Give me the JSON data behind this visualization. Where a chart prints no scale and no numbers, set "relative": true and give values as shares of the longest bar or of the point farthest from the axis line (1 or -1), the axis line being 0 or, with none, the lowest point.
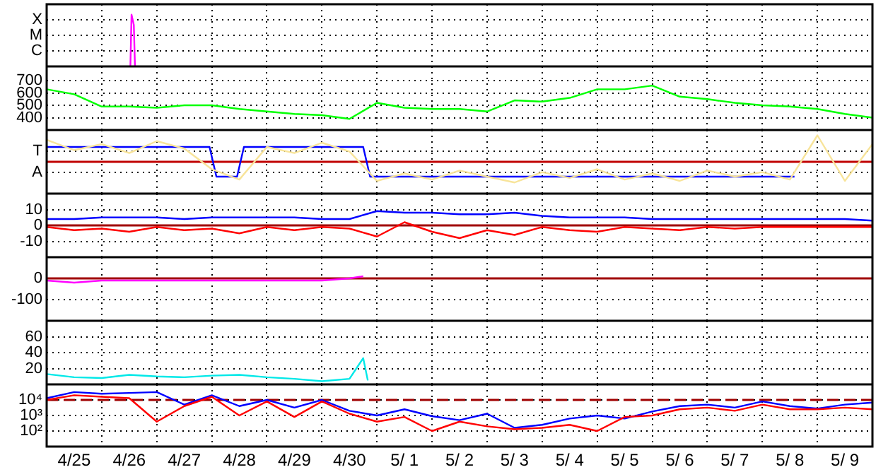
{
  "chart_data": [
    {
      "type": "line",
      "relative": true,
      "grid": true,
      "marker": "none",
      "tick_labels": false,
      "xlim": [
        "--04-25",
        "--05-10"
      ],
      "xticks": [
        {
          "value": "--04-26",
          "label": null
        },
        {
          "value": "--04-27",
          "label": null
        },
        {
          "value": "--04-28",
          "label": null
        },
        {
          "value": "--04-29",
          "label": null
        },
        {
          "value": "--04-30",
          "label": null
        },
        {
          "value": "--05-01",
          "label": null
        },
        {
          "value": "--05-02",
          "label": null
        },
        {
          "value": "--05-03",
          "label": null
        },
        {
          "value": "--05-04",
          "label": null
        },
        {
          "value": "--05-05",
          "label": null
        },
        {
          "value": "--05-06",
          "label": null
        },
        {
          "value": "--05-07",
          "label": null
        },
        {
          "value": "--05-08",
          "label": null
        },
        {
          "value": "--05-09",
          "label": null
        }
      ],
      "annotations": [
        "X",
        "M",
        "C"
      ],
      "series": [
        {
          "color": "#ff00ff",
          "x": [
            "--04-26T12:30",
            "--04-26T13:00",
            "--04-26T14:00",
            "--04-26T14:30"
          ],
          "values": [
            0,
            1,
            0.8,
            0
          ]
        }
      ]
    },
    {
      "type": "line",
      "grid": true,
      "marker": "none",
      "tick_labels": "y",
      "xlim": [
        "--04-25",
        "--05-10"
      ],
      "ylim": [
        300,
        815
      ],
      "yticks": [
        400,
        500,
        600,
        700
      ],
      "xticks": [
        {
          "value": "--04-26",
          "label": null
        },
        {
          "value": "--04-27",
          "label": null
        },
        {
          "value": "--04-28",
          "label": null
        },
        {
          "value": "--04-29",
          "label": null
        },
        {
          "value": "--04-30",
          "label": null
        },
        {
          "value": "--05-01",
          "label": null
        },
        {
          "value": "--05-02",
          "label": null
        },
        {
          "value": "--05-03",
          "label": null
        },
        {
          "value": "--05-04",
          "label": null
        },
        {
          "value": "--05-05",
          "label": null
        },
        {
          "value": "--05-06",
          "label": null
        },
        {
          "value": "--05-07",
          "label": null
        },
        {
          "value": "--05-08",
          "label": null
        },
        {
          "value": "--05-09",
          "label": null
        }
      ],
      "x": [
        "--04-25T00:00",
        "--04-25T12:00",
        "--04-26T00:00",
        "--04-26T12:00",
        "--04-27T00:00",
        "--04-27T12:00",
        "--04-28T00:00",
        "--04-28T12:00",
        "--04-29T00:00",
        "--04-29T12:00",
        "--04-30T00:00",
        "--04-30T12:00",
        "--05-01T00:00",
        "--05-01T12:00",
        "--05-02T00:00",
        "--05-02T12:00",
        "--05-03T00:00",
        "--05-03T12:00",
        "--05-04T00:00",
        "--05-04T12:00",
        "--05-05T00:00",
        "--05-05T12:00",
        "--05-06T00:00",
        "--05-06T12:00",
        "--05-07T00:00",
        "--05-07T12:00",
        "--05-08T00:00",
        "--05-08T12:00",
        "--05-09T00:00",
        "--05-09T12:00",
        "--05-10T00:00"
      ],
      "series": [
        {
          "color": "#00ff00",
          "values": [
            630,
            590,
            490,
            490,
            480,
            500,
            500,
            470,
            450,
            430,
            420,
            390,
            520,
            480,
            470,
            470,
            450,
            540,
            530,
            560,
            630,
            630,
            660,
            570,
            550,
            520,
            500,
            490,
            470,
            430,
            400
          ]
        }
      ]
    },
    {
      "type": "line",
      "relative": true,
      "grid": true,
      "marker": "none",
      "tick_labels": false,
      "xlim": [
        "--04-25",
        "--05-10"
      ],
      "xticks": [
        {
          "value": "--04-26",
          "label": null
        },
        {
          "value": "--04-27",
          "label": null
        },
        {
          "value": "--04-28",
          "label": null
        },
        {
          "value": "--04-29",
          "label": null
        },
        {
          "value": "--04-30",
          "label": null
        },
        {
          "value": "--05-01",
          "label": null
        },
        {
          "value": "--05-02",
          "label": null
        },
        {
          "value": "--05-03",
          "label": null
        },
        {
          "value": "--05-04",
          "label": null
        },
        {
          "value": "--05-05",
          "label": null
        },
        {
          "value": "--05-06",
          "label": null
        },
        {
          "value": "--05-07",
          "label": null
        },
        {
          "value": "--05-08",
          "label": null
        },
        {
          "value": "--05-09",
          "label": null
        }
      ],
      "annotations": [
        "T",
        "A"
      ],
      "x": [
        "--04-25T00:00",
        "--04-25T12:00",
        "--04-26T00:00",
        "--04-26T12:00",
        "--04-27T00:00",
        "--04-27T12:00",
        "--04-28T00:00",
        "--04-28T12:00",
        "--04-29T00:00",
        "--04-29T12:00",
        "--04-30T00:00",
        "--04-30T12:00",
        "--05-01T00:00",
        "--05-01T12:00",
        "--05-02T00:00",
        "--05-02T12:00",
        "--05-03T00:00",
        "--05-03T12:00",
        "--05-04T00:00",
        "--05-04T12:00",
        "--05-05T00:00",
        "--05-05T12:00",
        "--05-06T00:00",
        "--05-06T12:00",
        "--05-07T00:00",
        "--05-07T12:00",
        "--05-08T00:00",
        "--05-08T12:00",
        "--05-09T00:00",
        "--05-09T12:00",
        "--05-10T00:00"
      ],
      "ref_lines": [
        {
          "axis": "y",
          "value": 0,
          "color": "#c00000"
        }
      ],
      "series": [
        {
          "color": "#f8e49a",
          "values": [
            0.83,
            0.44,
            0.67,
            0.33,
            0.78,
            0.5,
            -0.28,
            -0.67,
            0.56,
            0.33,
            0.72,
            0.39,
            -0.72,
            -0.44,
            -0.67,
            -0.33,
            -0.56,
            -0.78,
            -0.39,
            -0.61,
            -0.28,
            -0.67,
            -0.44,
            -0.72,
            -0.33,
            -0.56,
            -0.39,
            -0.67,
            1,
            -0.72,
            0.67
          ]
        },
        {
          "color": "#0000ff",
          "x": [
            "--04-25T00:00",
            "--04-27T23:00",
            "--04-28T02:00",
            "--04-28T11:00",
            "--04-28T14:00",
            "--04-30T18:00",
            "--04-30T21:00",
            "--05-08T14:00"
          ],
          "values": [
            0.56,
            0.56,
            -0.56,
            -0.56,
            0.56,
            0.56,
            -0.56,
            -0.56
          ]
        }
      ]
    },
    {
      "type": "line",
      "grid": true,
      "marker": "none",
      "tick_labels": "y",
      "xlim": [
        "--04-25",
        "--05-10"
      ],
      "ylim": [
        -20,
        20
      ],
      "yticks": [
        -10,
        0,
        10
      ],
      "xticks": [
        {
          "value": "--04-26",
          "label": null
        },
        {
          "value": "--04-27",
          "label": null
        },
        {
          "value": "--04-28",
          "label": null
        },
        {
          "value": "--04-29",
          "label": null
        },
        {
          "value": "--04-30",
          "label": null
        },
        {
          "value": "--05-01",
          "label": null
        },
        {
          "value": "--05-02",
          "label": null
        },
        {
          "value": "--05-03",
          "label": null
        },
        {
          "value": "--05-04",
          "label": null
        },
        {
          "value": "--05-05",
          "label": null
        },
        {
          "value": "--05-06",
          "label": null
        },
        {
          "value": "--05-07",
          "label": null
        },
        {
          "value": "--05-08",
          "label": null
        },
        {
          "value": "--05-09",
          "label": null
        }
      ],
      "x": [
        "--04-25T00:00",
        "--04-25T12:00",
        "--04-26T00:00",
        "--04-26T12:00",
        "--04-27T00:00",
        "--04-27T12:00",
        "--04-28T00:00",
        "--04-28T12:00",
        "--04-29T00:00",
        "--04-29T12:00",
        "--04-30T00:00",
        "--04-30T12:00",
        "--05-01T00:00",
        "--05-01T12:00",
        "--05-02T00:00",
        "--05-02T12:00",
        "--05-03T00:00",
        "--05-03T12:00",
        "--05-04T00:00",
        "--05-04T12:00",
        "--05-05T00:00",
        "--05-05T12:00",
        "--05-06T00:00",
        "--05-06T12:00",
        "--05-07T00:00",
        "--05-07T12:00",
        "--05-08T00:00",
        "--05-08T12:00",
        "--05-09T00:00",
        "--05-09T12:00",
        "--05-10T00:00"
      ],
      "ref_lines": [
        {
          "axis": "y",
          "value": 0,
          "color": "#a00000"
        }
      ],
      "series": [
        {
          "color": "#0000ff",
          "values": [
            4,
            4,
            5,
            5,
            5,
            4,
            5,
            5,
            5,
            5,
            4,
            4,
            9,
            8,
            8,
            7,
            7,
            8,
            6,
            5,
            5,
            5,
            4,
            4,
            4,
            4,
            4,
            4,
            4,
            4,
            3
          ]
        },
        {
          "color": "#ff0000",
          "values": [
            -1,
            -3,
            -2,
            -4,
            -1,
            -3,
            -2,
            -5,
            -1,
            -3,
            -1,
            -2,
            -7,
            2,
            -4,
            -8,
            -3,
            -6,
            -1,
            -3,
            -4,
            -1,
            -2,
            -3,
            -1,
            -2,
            -1,
            -1,
            -1,
            -1,
            -1
          ]
        }
      ]
    },
    {
      "type": "line",
      "grid": true,
      "marker": "none",
      "tick_labels": "y",
      "xlim": [
        "--04-25",
        "--05-10"
      ],
      "ylim": [
        -200,
        100
      ],
      "yticks": [
        -100,
        0
      ],
      "xticks": [
        {
          "value": "--04-26",
          "label": null
        },
        {
          "value": "--04-27",
          "label": null
        },
        {
          "value": "--04-28",
          "label": null
        },
        {
          "value": "--04-29",
          "label": null
        },
        {
          "value": "--04-30",
          "label": null
        },
        {
          "value": "--05-01",
          "label": null
        },
        {
          "value": "--05-02",
          "label": null
        },
        {
          "value": "--05-03",
          "label": null
        },
        {
          "value": "--05-04",
          "label": null
        },
        {
          "value": "--05-05",
          "label": null
        },
        {
          "value": "--05-06",
          "label": null
        },
        {
          "value": "--05-07",
          "label": null
        },
        {
          "value": "--05-08",
          "label": null
        },
        {
          "value": "--05-09",
          "label": null
        }
      ],
      "ref_lines": [
        {
          "axis": "y",
          "value": 0,
          "color": "#a00000"
        }
      ],
      "series": [
        {
          "color": "#ff00ff",
          "x": [
            "--04-25T00:00",
            "--04-25T12:00",
            "--04-26T00:00",
            "--04-26T12:00",
            "--04-27T00:00",
            "--04-27T12:00",
            "--04-28T00:00",
            "--04-28T12:00",
            "--04-29T00:00",
            "--04-29T12:00",
            "--04-30T00:00",
            "--04-30T12:00",
            "--04-30T18:00"
          ],
          "values": [
            -10,
            -20,
            -10,
            -10,
            -10,
            -10,
            -10,
            -10,
            -10,
            -10,
            -10,
            0,
            10
          ]
        }
      ]
    },
    {
      "type": "line",
      "grid": true,
      "marker": "none",
      "tick_labels": "y",
      "xlim": [
        "--04-25",
        "--05-10"
      ],
      "ylim": [
        0,
        80
      ],
      "yticks": [
        20,
        40,
        60
      ],
      "xticks": [
        {
          "value": "--04-26",
          "label": null
        },
        {
          "value": "--04-27",
          "label": null
        },
        {
          "value": "--04-28",
          "label": null
        },
        {
          "value": "--04-29",
          "label": null
        },
        {
          "value": "--04-30",
          "label": null
        },
        {
          "value": "--05-01",
          "label": null
        },
        {
          "value": "--05-02",
          "label": null
        },
        {
          "value": "--05-03",
          "label": null
        },
        {
          "value": "--05-04",
          "label": null
        },
        {
          "value": "--05-05",
          "label": null
        },
        {
          "value": "--05-06",
          "label": null
        },
        {
          "value": "--05-07",
          "label": null
        },
        {
          "value": "--05-08",
          "label": null
        },
        {
          "value": "--05-09",
          "label": null
        }
      ],
      "series": [
        {
          "color": "#00e8e8",
          "x": [
            "--04-25T00:00",
            "--04-25T12:00",
            "--04-26T00:00",
            "--04-26T12:00",
            "--04-27T00:00",
            "--04-27T12:00",
            "--04-28T00:00",
            "--04-28T12:00",
            "--04-29T00:00",
            "--04-29T12:00",
            "--04-30T00:00",
            "--04-30T12:00",
            "--04-30T18:00",
            "--04-30T20:00"
          ],
          "values": [
            13,
            9,
            8,
            12,
            10,
            9,
            11,
            12,
            9,
            7,
            4,
            7,
            33,
            5
          ]
        }
      ]
    },
    {
      "type": "line",
      "log": "y",
      "grid": true,
      "marker": "none",
      "xlim": [
        "--04-25",
        "--05-10"
      ],
      "ylim": [
        10,
        100000
      ],
      "yticks": [
        {
          "value": 100,
          "label": "10²"
        },
        {
          "value": 1000,
          "label": "10³"
        },
        {
          "value": 10000,
          "label": "10⁴"
        }
      ],
      "xticks": [
        {
          "value": "--04-25T12:00",
          "label": "4/25"
        },
        {
          "value": "--04-26",
          "label": null
        },
        {
          "value": "--04-26T12:00",
          "label": "4/26"
        },
        {
          "value": "--04-27",
          "label": null
        },
        {
          "value": "--04-27T12:00",
          "label": "4/27"
        },
        {
          "value": "--04-28",
          "label": null
        },
        {
          "value": "--04-28T12:00",
          "label": "4/28"
        },
        {
          "value": "--04-29",
          "label": null
        },
        {
          "value": "--04-29T12:00",
          "label": "4/29"
        },
        {
          "value": "--04-30",
          "label": null
        },
        {
          "value": "--04-30T12:00",
          "label": "4/30"
        },
        {
          "value": "--05-01",
          "label": null
        },
        {
          "value": "--05-01T12:00",
          "label": "5/ 1"
        },
        {
          "value": "--05-02",
          "label": null
        },
        {
          "value": "--05-02T12:00",
          "label": "5/ 2"
        },
        {
          "value": "--05-03",
          "label": null
        },
        {
          "value": "--05-03T12:00",
          "label": "5/ 3"
        },
        {
          "value": "--05-04",
          "label": null
        },
        {
          "value": "--05-04T12:00",
          "label": "5/ 4"
        },
        {
          "value": "--05-05",
          "label": null
        },
        {
          "value": "--05-05T12:00",
          "label": "5/ 5"
        },
        {
          "value": "--05-06",
          "label": null
        },
        {
          "value": "--05-06T12:00",
          "label": "5/ 6"
        },
        {
          "value": "--05-07",
          "label": null
        },
        {
          "value": "--05-07T12:00",
          "label": "5/ 7"
        },
        {
          "value": "--05-08",
          "label": null
        },
        {
          "value": "--05-08T12:00",
          "label": "5/ 8"
        },
        {
          "value": "--05-09",
          "label": null
        },
        {
          "value": "--05-09T12:00",
          "label": "5/ 9"
        }
      ],
      "x": [
        "--04-25T00:00",
        "--04-25T12:00",
        "--04-26T00:00",
        "--04-26T12:00",
        "--04-27T00:00",
        "--04-27T12:00",
        "--04-28T00:00",
        "--04-28T12:00",
        "--04-29T00:00",
        "--04-29T12:00",
        "--04-30T00:00",
        "--04-30T12:00",
        "--05-01T00:00",
        "--05-01T12:00",
        "--05-02T00:00",
        "--05-02T12:00",
        "--05-03T00:00",
        "--05-03T12:00",
        "--05-04T00:00",
        "--05-04T12:00",
        "--05-05T00:00",
        "--05-05T12:00",
        "--05-06T00:00",
        "--05-06T12:00",
        "--05-07T00:00",
        "--05-07T12:00",
        "--05-08T00:00",
        "--05-08T12:00",
        "--05-09T00:00",
        "--05-09T12:00",
        "--05-10T00:00"
      ],
      "ref_lines": [
        {
          "axis": "y",
          "value": 10000,
          "color": "#a00000",
          "line_style": "dashed"
        }
      ],
      "series": [
        {
          "color": "#ff0000",
          "values": [
            10000,
            20000,
            16000,
            13000,
            400,
            4000,
            16000,
            1000,
            8000,
            800,
            8000,
            1300,
            400,
            800,
            100,
            400,
            200,
            130,
            160,
            250,
            100,
            800,
            1000,
            2500,
            3200,
            2000,
            5000,
            2500,
            2500,
            3200,
            2500
          ]
        },
        {
          "color": "#0000ff",
          "values": [
            13000,
            32000,
            25000,
            28000,
            32000,
            5000,
            20000,
            4000,
            10000,
            3200,
            10000,
            2000,
            1000,
            2500,
            900,
            500,
            1300,
            160,
            250,
            630,
            1000,
            630,
            1800,
            4000,
            5000,
            3200,
            8000,
            4000,
            2800,
            5000,
            6800
          ]
        }
      ]
    }
  ]
}
